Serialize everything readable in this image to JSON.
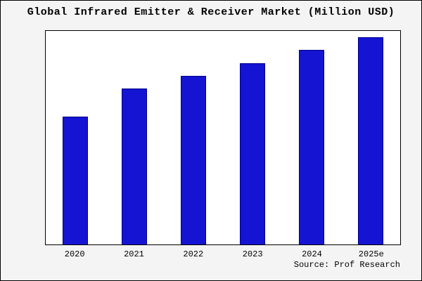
{
  "chart_data": {
    "type": "bar",
    "title": "Global Infrared Emitter & Receiver Market (Million USD)",
    "categories": [
      "2020",
      "2021",
      "2022",
      "2023",
      "2024",
      "2025e"
    ],
    "values": [
      60,
      73,
      79,
      85,
      91,
      97
    ],
    "xlabel": "",
    "ylabel": "",
    "ylim": [
      0,
      100
    ],
    "grid": false,
    "legend": "none",
    "bar_color": "#1414d2",
    "bar_edge_color": "#00008b",
    "source": "Source: Prof Research"
  }
}
